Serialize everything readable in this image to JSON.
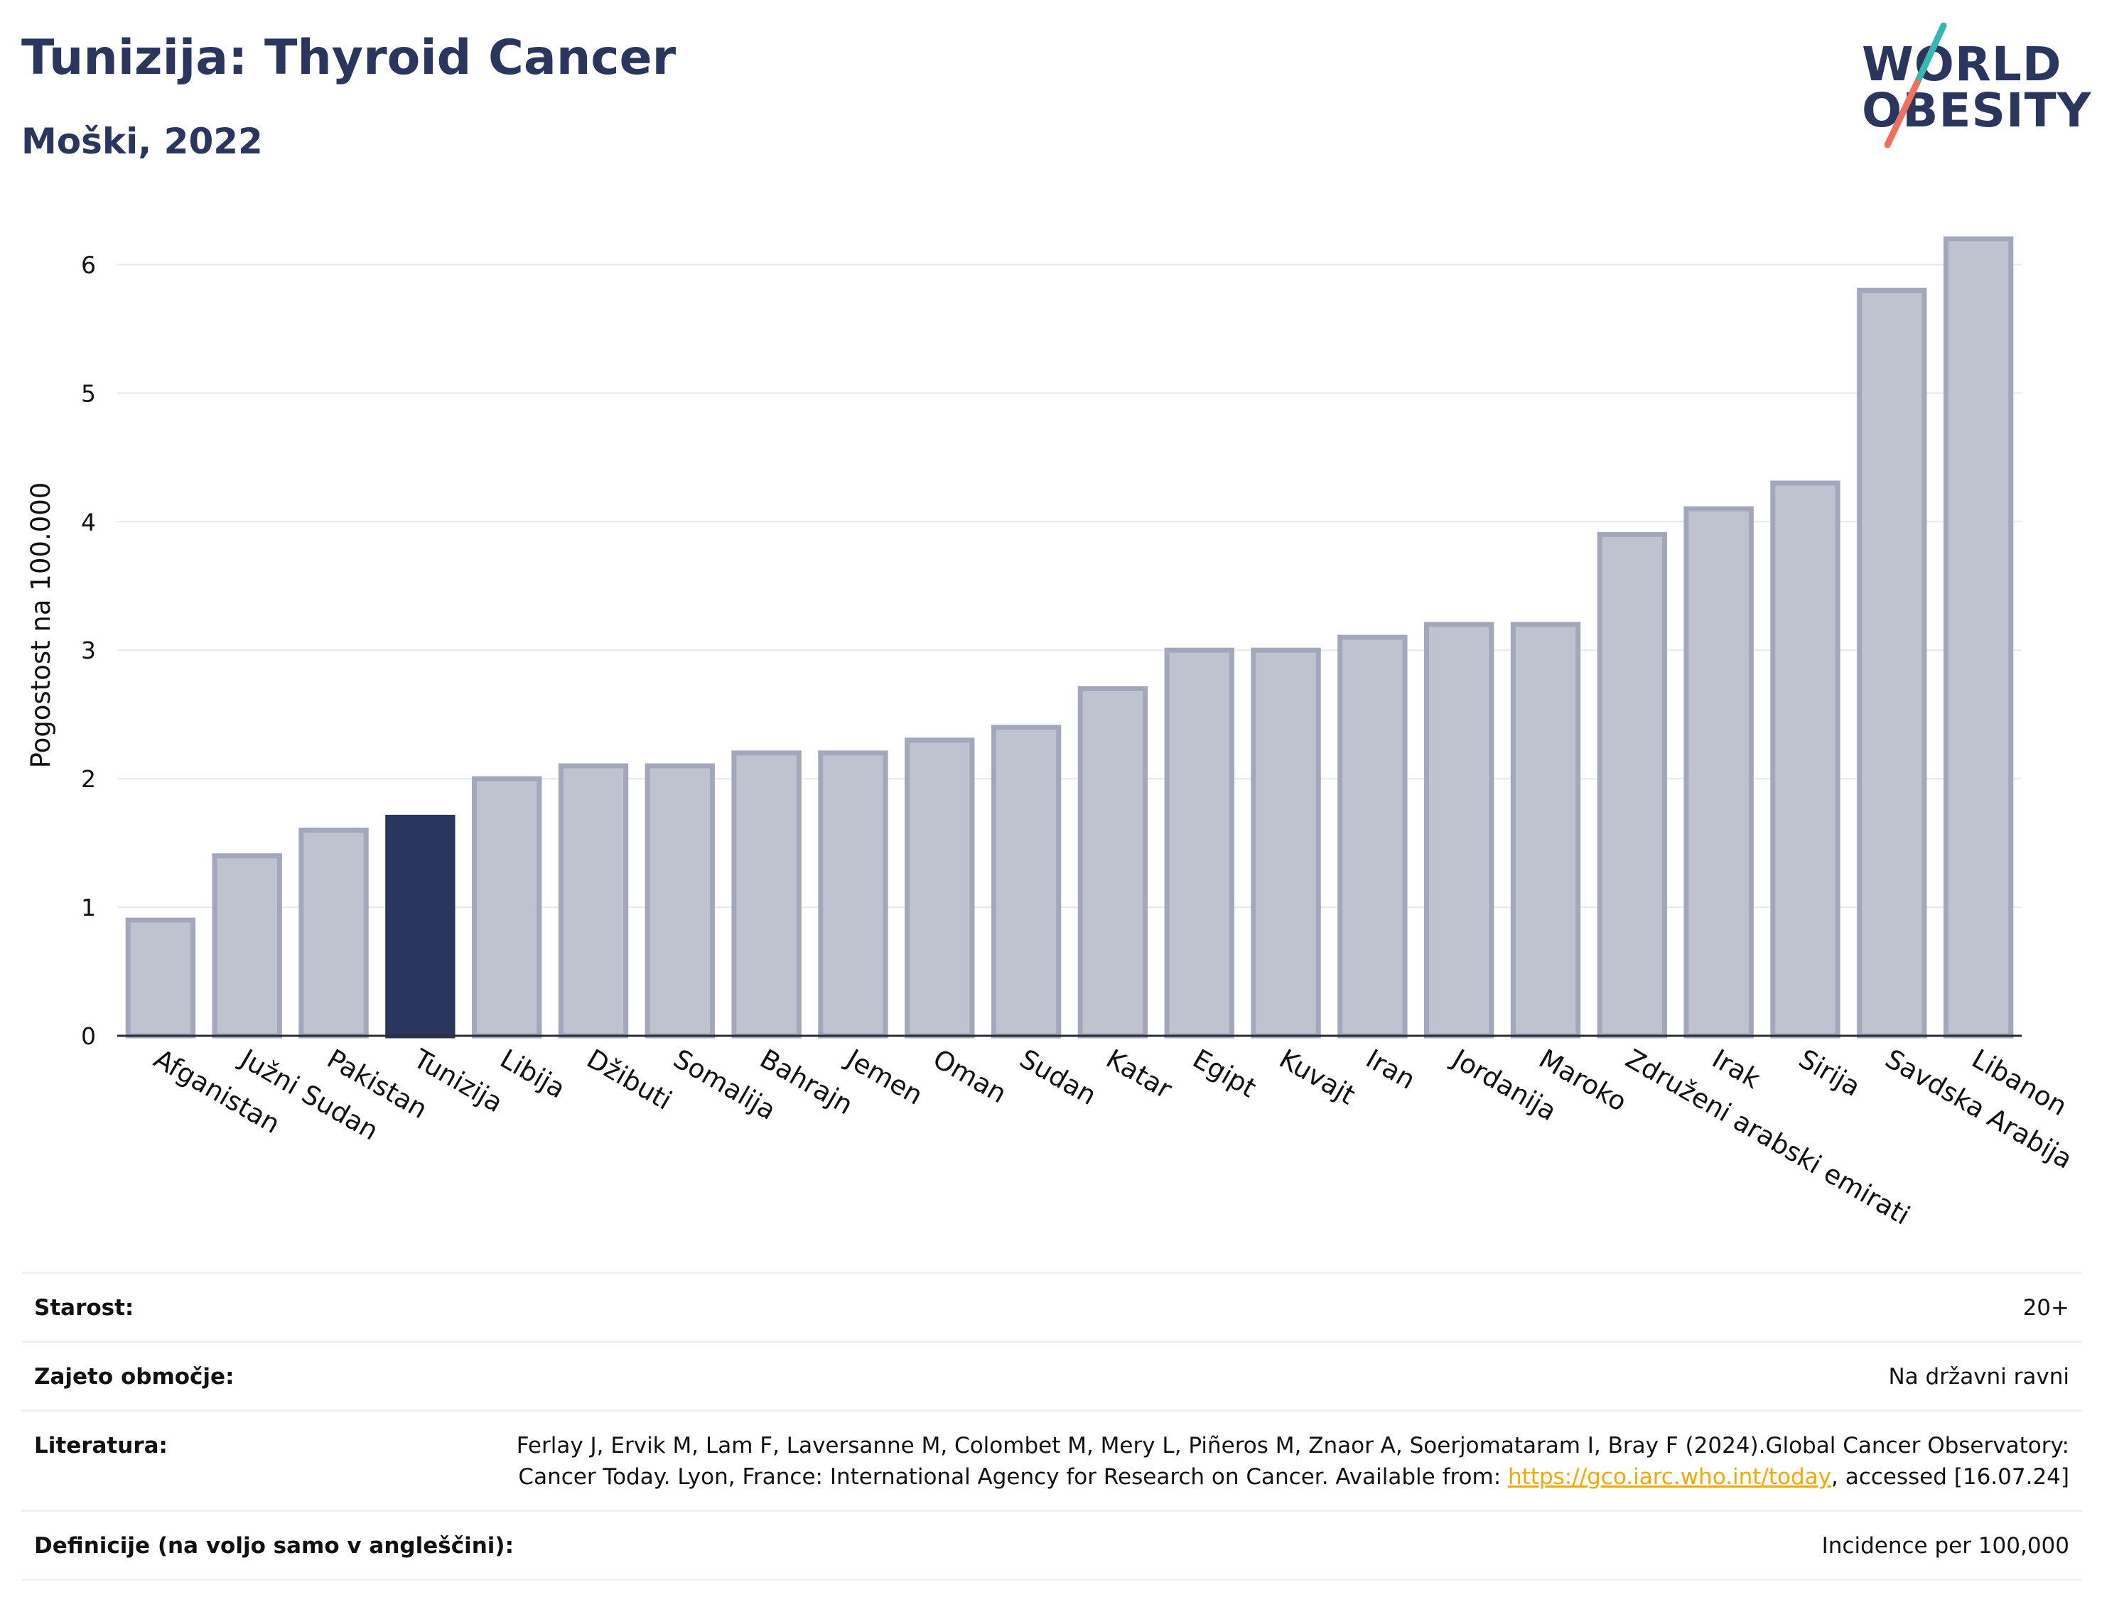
{
  "header": {
    "title": "Tunizija: Thyroid Cancer",
    "subtitle": "Moški, 2022"
  },
  "logo": {
    "line1": "WORLD",
    "line2": "OBESITY",
    "accent_colors": [
      "#36b7b0",
      "#f07060"
    ]
  },
  "chart_data": {
    "type": "bar",
    "ylabel": "Pogostost na 100.000",
    "ylim": [
      0,
      6.4
    ],
    "yticks": [
      0,
      1,
      2,
      3,
      4,
      5,
      6
    ],
    "grid": true,
    "categories": [
      "Afganistan",
      "Južni Sudan",
      "Pakistan",
      "Tunizija",
      "Libija",
      "Džibuti",
      "Somalija",
      "Bahrajn",
      "Jemen",
      "Oman",
      "Sudan",
      "Katar",
      "Egipt",
      "Kuvajt",
      "Iran",
      "Jordanija",
      "Maroko",
      "Združeni arabski emirati",
      "Irak",
      "Sirija",
      "Savdska Arabija",
      "Libanon"
    ],
    "values": [
      0.9,
      1.4,
      1.6,
      1.7,
      2.0,
      2.1,
      2.1,
      2.2,
      2.2,
      2.3,
      2.4,
      2.7,
      3.0,
      3.0,
      3.1,
      3.2,
      3.2,
      3.9,
      4.1,
      4.3,
      5.8,
      6.2
    ],
    "highlight": "Tunizija",
    "colors": {
      "bar": "#bfc2cf",
      "bar_border": "#a2a7bb",
      "highlight": "#2b365f",
      "grid": "#e8e9ee",
      "axis": "#2b2b3a"
    }
  },
  "footer": {
    "rows": [
      {
        "label": "Starost:",
        "value": "20+"
      },
      {
        "label": "Zajeto območje:",
        "value": "Na državni ravni"
      },
      {
        "label": "Literatura:",
        "value_before": "Ferlay J, Ervik M, Lam F, Laversanne M, Colombet M, Mery L, Piñeros M, Znaor A, Soerjomataram I, Bray F (2024).Global Cancer Observatory: Cancer Today. Lyon, France: International Agency for Research on Cancer. Available from: ",
        "link": "https://gco.iarc.who.int/today",
        "value_after": ", accessed [16.07.24]"
      },
      {
        "label": "Definicije (na voljo samo v angleščini):",
        "value": "Incidence per 100,000"
      }
    ]
  }
}
